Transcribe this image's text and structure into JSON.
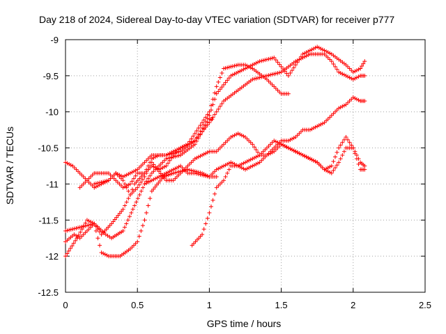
{
  "chart_data": {
    "type": "scatter",
    "title": "Day 218 of 2024, Sidereal Day-to-day VTEC variation (SDTVAR) for receiver p777",
    "xlabel": "GPS time / hours",
    "ylabel": "SDTVAR / TECUs",
    "xlim": [
      0,
      2.5
    ],
    "ylim": [
      -12.5,
      -9
    ],
    "xticks": [
      0,
      0.5,
      1,
      1.5,
      2,
      2.5
    ],
    "xtick_labels": [
      "0",
      "0.5",
      "1",
      "1.5",
      "2",
      "2.5"
    ],
    "yticks": [
      -9,
      -9.5,
      -10,
      -10.5,
      -11,
      -11.5,
      -12,
      -12.5
    ],
    "ytick_labels": [
      "-9",
      "-9.5",
      "-10",
      "-10.5",
      "-11",
      "-11.5",
      "-12",
      "-12.5"
    ],
    "grid": true,
    "marker": "+",
    "color": "#ff0000",
    "series": [
      {
        "x": [
          0.0,
          0.08,
          0.15,
          0.2,
          0.25,
          0.3,
          0.38,
          0.45,
          0.5,
          0.55,
          0.6,
          0.68,
          0.75,
          0.85,
          0.95,
          1.0,
          1.05
        ],
        "y": [
          -12.0,
          -11.75,
          -11.5,
          -11.55,
          -11.95,
          -12.0,
          -12.0,
          -11.9,
          -11.8,
          -11.5,
          -11.1,
          -10.9,
          -10.85,
          -10.8,
          -10.85,
          -10.9,
          -10.9
        ]
      },
      {
        "x": [
          0.0,
          0.1,
          0.2,
          0.28,
          0.32,
          0.4,
          0.48,
          0.55,
          0.6,
          0.7,
          0.8,
          0.9,
          1.0,
          1.02
        ],
        "y": [
          -11.65,
          -11.6,
          -11.55,
          -11.7,
          -11.75,
          -11.65,
          -11.3,
          -11.0,
          -10.85,
          -10.65,
          -10.6,
          -10.45,
          -10.1,
          -10.1
        ]
      },
      {
        "x": [
          0.0,
          0.06,
          0.1,
          0.15,
          0.2,
          0.25,
          0.32,
          0.4,
          0.45,
          0.48,
          0.55,
          0.6,
          0.65,
          0.7,
          0.75,
          0.8,
          0.85,
          0.9,
          1.0,
          1.05,
          1.1,
          1.2,
          1.25,
          1.3,
          1.4,
          1.45,
          1.5,
          1.55
        ],
        "y": [
          -11.8,
          -11.7,
          -11.75,
          -11.65,
          -11.55,
          -11.7,
          -11.55,
          -11.35,
          -11.15,
          -11.0,
          -10.85,
          -10.75,
          -10.8,
          -10.75,
          -10.6,
          -10.5,
          -10.45,
          -10.3,
          -10.0,
          -9.65,
          -9.4,
          -9.35,
          -9.35,
          -9.4,
          -9.55,
          -9.65,
          -9.75,
          -9.75
        ]
      },
      {
        "x": [
          0.0,
          0.05,
          0.1,
          0.15,
          0.2,
          0.25,
          0.3,
          0.35,
          0.4,
          0.45,
          0.5,
          0.55,
          0.6,
          0.7,
          0.8,
          0.9,
          1.0,
          1.1,
          1.2,
          1.3,
          1.4,
          1.5,
          1.6,
          1.7,
          1.8,
          1.85,
          1.9,
          1.95,
          2.0,
          2.05,
          2.08
        ],
        "y": [
          -10.7,
          -10.75,
          -10.85,
          -10.95,
          -11.05,
          -11.0,
          -10.95,
          -10.85,
          -10.9,
          -10.85,
          -10.8,
          -10.7,
          -10.6,
          -10.6,
          -10.5,
          -10.4,
          -10.15,
          -9.85,
          -9.7,
          -9.55,
          -9.5,
          -9.45,
          -9.3,
          -9.2,
          -9.2,
          -9.3,
          -9.45,
          -9.5,
          -9.55,
          -9.5,
          -9.5
        ]
      },
      {
        "x": [
          0.1,
          0.15,
          0.2,
          0.25,
          0.3,
          0.35,
          0.4,
          0.45,
          0.5,
          0.55,
          0.6,
          0.65,
          0.7,
          0.8,
          0.9,
          1.0,
          1.05,
          1.15,
          1.25,
          1.35,
          1.45,
          1.55,
          1.65,
          1.75,
          1.85,
          1.95,
          2.0,
          2.05,
          2.08
        ],
        "y": [
          -11.05,
          -10.95,
          -10.85,
          -10.85,
          -10.85,
          -10.95,
          -11.05,
          -11.0,
          -10.85,
          -10.85,
          -10.65,
          -10.6,
          -10.6,
          -10.55,
          -10.4,
          -10.05,
          -9.75,
          -9.5,
          -9.4,
          -9.3,
          -9.25,
          -9.5,
          -9.2,
          -9.1,
          -9.2,
          -9.35,
          -9.45,
          -9.4,
          -9.3
        ]
      },
      {
        "x": [
          0.2,
          0.3,
          0.35,
          0.4,
          0.45,
          0.5,
          0.55,
          0.6,
          0.7,
          0.75,
          0.8,
          0.85,
          0.9,
          1.0,
          1.05,
          1.1,
          1.15,
          1.2,
          1.25,
          1.3,
          1.35,
          1.4,
          1.45,
          1.5,
          1.55,
          1.6,
          1.65,
          1.7,
          1.8,
          1.85,
          1.9,
          1.95,
          2.0,
          2.05,
          2.08
        ],
        "y": [
          -11.0,
          -10.95,
          -10.85,
          -10.95,
          -11.15,
          -11.05,
          -10.9,
          -10.7,
          -10.95,
          -10.95,
          -10.85,
          -10.75,
          -10.65,
          -10.55,
          -10.55,
          -10.45,
          -10.35,
          -10.3,
          -10.35,
          -10.45,
          -10.6,
          -10.6,
          -10.5,
          -10.4,
          -10.4,
          -10.35,
          -10.25,
          -10.25,
          -10.15,
          -10.05,
          -9.95,
          -9.9,
          -9.8,
          -9.85,
          -9.85
        ]
      },
      {
        "x": [
          0.55,
          0.65,
          0.75,
          0.8,
          0.85,
          0.9,
          1.0,
          1.05,
          1.1,
          1.15,
          1.2,
          1.25,
          1.3,
          1.35,
          1.4,
          1.45,
          1.5,
          1.55,
          1.6,
          1.65,
          1.7,
          1.75,
          1.8,
          1.85,
          1.9,
          1.95,
          2.0,
          2.05,
          2.08
        ],
        "y": [
          -11.0,
          -10.9,
          -10.8,
          -10.75,
          -10.85,
          -10.85,
          -10.9,
          -10.8,
          -10.75,
          -10.7,
          -10.75,
          -10.8,
          -10.75,
          -10.7,
          -10.6,
          -10.55,
          -10.45,
          -10.5,
          -10.55,
          -10.6,
          -10.65,
          -10.7,
          -10.8,
          -10.85,
          -10.7,
          -10.5,
          -10.5,
          -10.8,
          -10.8
        ]
      },
      {
        "x": [
          0.88,
          0.95,
          1.0,
          1.05,
          1.1,
          1.15,
          1.2,
          1.25,
          1.3,
          1.35,
          1.4,
          1.45,
          1.5,
          1.55,
          1.6,
          1.65,
          1.7,
          1.75,
          1.8,
          1.85,
          1.9,
          1.95,
          2.0,
          2.05,
          2.08
        ],
        "y": [
          -11.85,
          -11.7,
          -11.4,
          -11.05,
          -10.95,
          -10.75,
          -10.75,
          -10.7,
          -10.65,
          -10.6,
          -10.5,
          -10.4,
          -10.45,
          -10.5,
          -10.55,
          -10.6,
          -10.65,
          -10.7,
          -10.8,
          -10.75,
          -10.5,
          -10.35,
          -10.5,
          -10.7,
          -10.75
        ]
      }
    ]
  }
}
